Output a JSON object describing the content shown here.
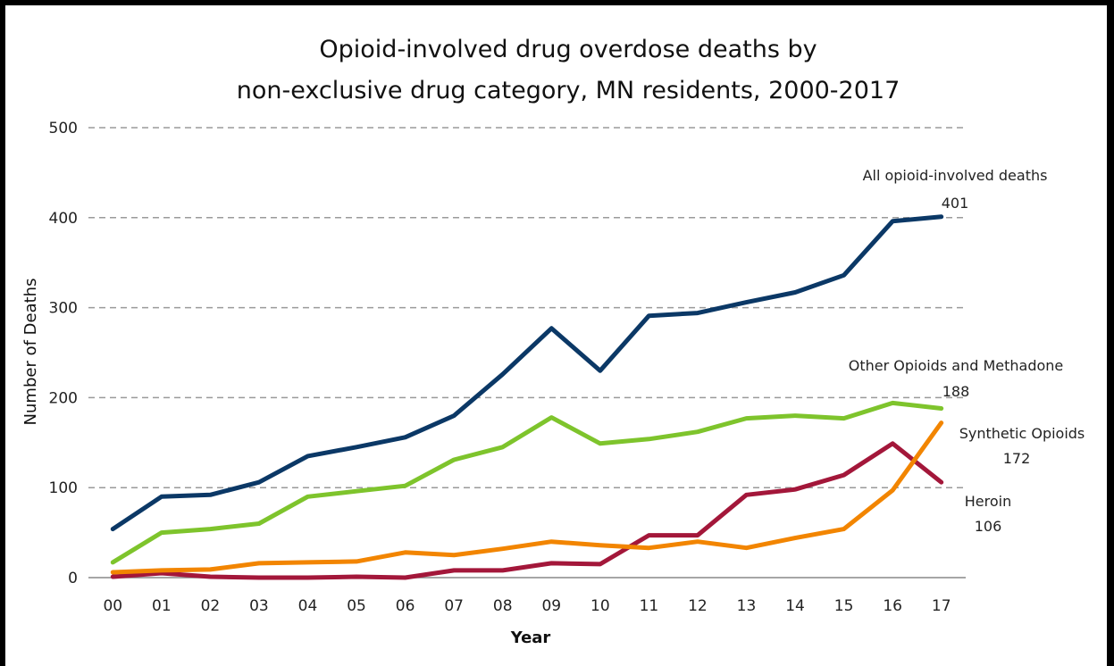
{
  "chart_data": {
    "type": "line",
    "title_line1": "Opioid-involved drug overdose deaths by",
    "title_line2": "non-exclusive drug category, MN residents, 2000-2017",
    "xlabel": "Year",
    "ylabel": "Number of Deaths",
    "ylim": [
      0,
      500
    ],
    "yticks": [
      "0",
      "100",
      "200",
      "300",
      "400",
      "500"
    ],
    "categories": [
      "00",
      "01",
      "02",
      "03",
      "04",
      "05",
      "06",
      "07",
      "08",
      "09",
      "10",
      "11",
      "12",
      "13",
      "14",
      "15",
      "16",
      "17"
    ],
    "grid": true,
    "series": [
      {
        "name": "All opioid-involved deaths",
        "color": "#0b3866",
        "label_value": "401",
        "values": [
          54,
          90,
          92,
          106,
          135,
          145,
          156,
          180,
          226,
          277,
          230,
          291,
          294,
          306,
          317,
          336,
          396,
          401
        ]
      },
      {
        "name": "Other Opioids and Methadone",
        "color": "#7ec42c",
        "label_value": "188",
        "values": [
          17,
          50,
          54,
          60,
          90,
          96,
          102,
          131,
          145,
          178,
          149,
          154,
          162,
          177,
          180,
          177,
          194,
          188
        ]
      },
      {
        "name": "Synthetic Opioids",
        "color": "#f28500",
        "label_value": "172",
        "values": [
          6,
          8,
          9,
          16,
          17,
          18,
          28,
          25,
          32,
          40,
          36,
          33,
          40,
          33,
          44,
          54,
          97,
          172
        ]
      },
      {
        "name": "Heroin",
        "color": "#a3173a",
        "label_value": "106",
        "values": [
          1,
          5,
          1,
          0,
          0,
          1,
          0,
          8,
          8,
          16,
          15,
          47,
          47,
          92,
          98,
          114,
          149,
          106
        ]
      }
    ]
  }
}
